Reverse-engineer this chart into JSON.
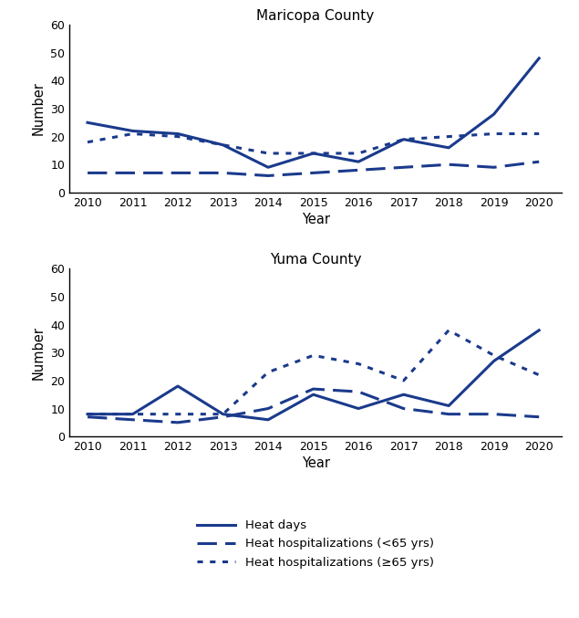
{
  "years": [
    2010,
    2011,
    2012,
    2013,
    2014,
    2015,
    2016,
    2017,
    2018,
    2019,
    2020
  ],
  "maricopa": {
    "title": "Maricopa County",
    "heat_days": [
      25,
      22,
      21,
      17,
      9,
      14,
      11,
      19,
      16,
      28,
      48
    ],
    "hosp_lt65": [
      7,
      7,
      7,
      7,
      6,
      7,
      8,
      9,
      10,
      9,
      11
    ],
    "hosp_ge65": [
      18,
      21,
      20,
      17,
      14,
      14,
      14,
      19,
      20,
      21,
      21
    ]
  },
  "yuma": {
    "title": "Yuma County",
    "heat_days": [
      8,
      8,
      18,
      8,
      6,
      15,
      10,
      15,
      11,
      27,
      38
    ],
    "hosp_lt65": [
      7,
      6,
      5,
      7,
      10,
      17,
      16,
      10,
      8,
      8,
      7
    ],
    "hosp_ge65": [
      8,
      8,
      8,
      8,
      23,
      29,
      26,
      20,
      38,
      29,
      22
    ]
  },
  "color": "#1a3a8c",
  "ylim": [
    0,
    60
  ],
  "yticks": [
    0,
    10,
    20,
    30,
    40,
    50,
    60
  ],
  "xlabel": "Year",
  "ylabel": "Number",
  "legend_labels": [
    "Heat days",
    "Heat hospitalizations (<65 yrs)",
    "Heat hospitalizations (≥65 yrs)"
  ]
}
